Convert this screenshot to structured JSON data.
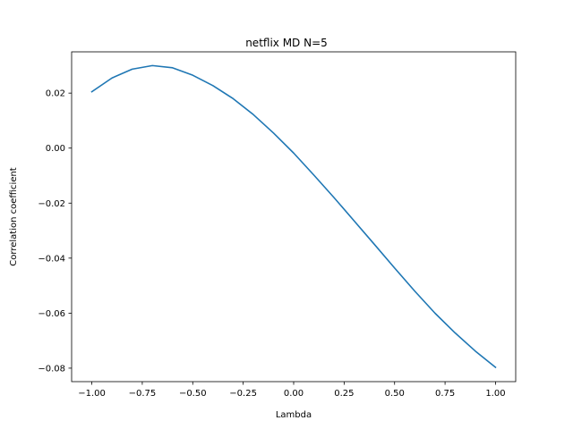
{
  "chart_data": {
    "type": "line",
    "title": "netflix MD N=5",
    "xlabel": "Lambda",
    "ylabel": "Correlation coefficient",
    "xlim": [
      -1.1,
      1.1
    ],
    "ylim": [
      -0.0849,
      0.035
    ],
    "grid": false,
    "xticks": [
      -1.0,
      -0.75,
      -0.5,
      -0.25,
      0.0,
      0.25,
      0.5,
      0.75,
      1.0
    ],
    "xtick_labels": [
      "−1.00",
      "−0.75",
      "−0.50",
      "−0.25",
      "0.00",
      "0.25",
      "0.50",
      "0.75",
      "1.00"
    ],
    "yticks": [
      0.02,
      0.0,
      -0.02,
      -0.04,
      -0.06,
      -0.08
    ],
    "ytick_labels": [
      "0.02",
      "0.00",
      "−0.02",
      "−0.04",
      "−0.06",
      "−0.08"
    ],
    "series": [
      {
        "color": "#1f77b4",
        "x": [
          -1.0,
          -0.9,
          -0.8,
          -0.7,
          -0.6,
          -0.5,
          -0.4,
          -0.3,
          -0.2,
          -0.1,
          0.0,
          0.1,
          0.2,
          0.3,
          0.4,
          0.5,
          0.6,
          0.7,
          0.8,
          0.9,
          1.0
        ],
        "y": [
          0.0205,
          0.0255,
          0.0287,
          0.03,
          0.0292,
          0.0265,
          0.0227,
          0.018,
          0.0122,
          0.0055,
          -0.0018,
          -0.0098,
          -0.018,
          -0.0265,
          -0.035,
          -0.0436,
          -0.052,
          -0.06,
          -0.0672,
          -0.0738,
          -0.0797
        ]
      }
    ]
  }
}
